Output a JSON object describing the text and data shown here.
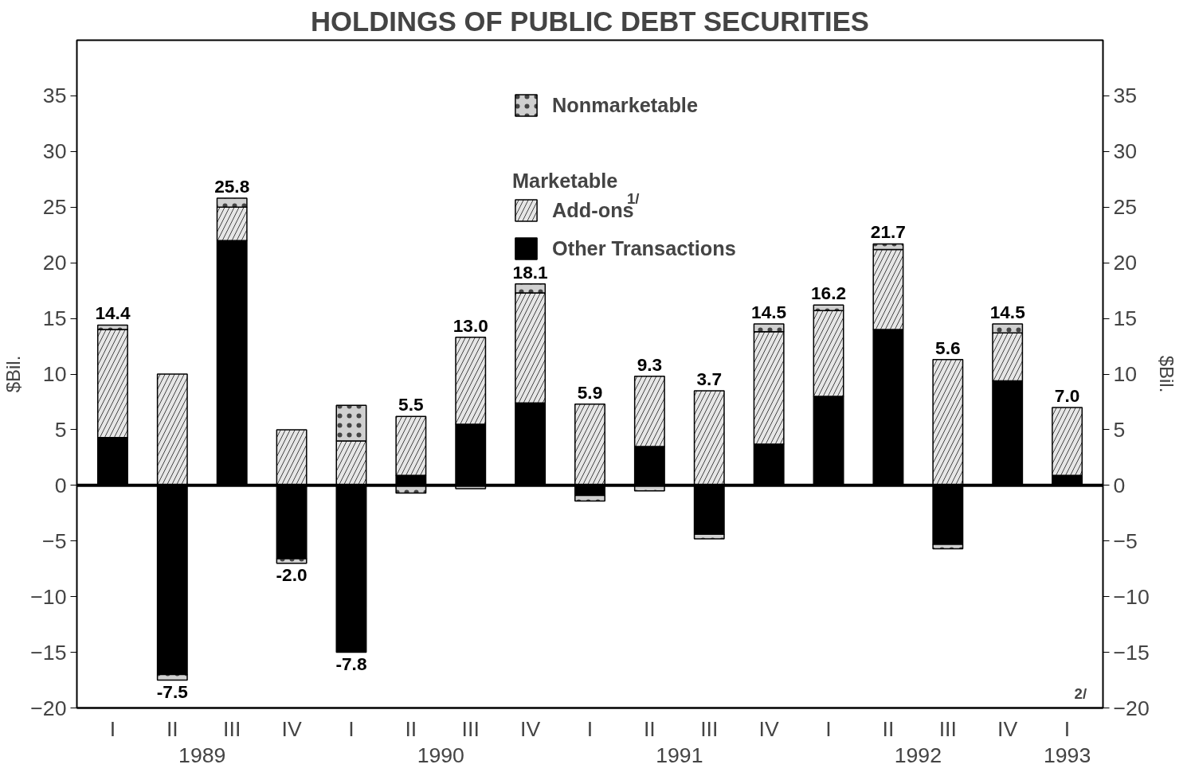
{
  "chart_data": {
    "type": "bar",
    "title": "HOLDINGS OF PUBLIC DEBT SECURITIES",
    "ylabel": "$Bil.",
    "y2label": "$Bil.",
    "categories": [
      "I",
      "II",
      "III",
      "IV",
      "I",
      "II",
      "III",
      "IV",
      "I",
      "II",
      "III",
      "IV",
      "I",
      "II",
      "III",
      "IV",
      "I"
    ],
    "stacked": true,
    "series": [
      {
        "name": "Other Transactions",
        "color": "#000000",
        "values": [
          4.3,
          -17.0,
          22.0,
          -6.6,
          -15.0,
          0.9,
          5.5,
          7.4,
          -0.9,
          3.5,
          -4.4,
          3.7,
          8.0,
          14.0,
          -5.3,
          9.4,
          0.9
        ]
      },
      {
        "name": "Add-ons",
        "color": "#e6e6e6",
        "values": [
          9.7,
          10.0,
          3.0,
          5.0,
          4.0,
          5.3,
          7.8,
          9.9,
          7.3,
          6.3,
          8.5,
          10.1,
          7.7,
          7.2,
          11.3,
          4.3,
          6.1
        ]
      },
      {
        "name": "Nonmarketable",
        "color": "#d0d0d0",
        "values": [
          0.4,
          -0.5,
          0.8,
          -0.4,
          3.2,
          -0.7,
          -0.3,
          0.8,
          -0.5,
          -0.5,
          -0.4,
          0.7,
          0.5,
          0.5,
          -0.4,
          0.8,
          null
        ]
      }
    ],
    "totals": [
      "14.4",
      "-7.5",
      "25.8",
      "-2.0",
      "-7.8",
      "5.5",
      "13.0",
      "18.1",
      "5.9",
      "9.3",
      "3.7",
      "14.5",
      "16.2",
      "21.7",
      "5.6",
      "14.5",
      "7.0"
    ],
    "ylim": [
      -20,
      40
    ],
    "yticks": [
      -20,
      -15,
      -10,
      -5,
      0,
      5,
      10,
      15,
      20,
      25,
      30,
      35
    ],
    "y2lim": [
      -20,
      40
    ],
    "y2ticks": [
      -20,
      -15,
      -10,
      -5,
      0,
      5,
      10,
      15,
      20,
      25,
      30,
      35
    ],
    "legend": "top",
    "annotations": [
      "1989",
      "1990",
      "1991",
      "1992",
      "1993",
      "Marketable",
      "1/",
      "2/"
    ]
  }
}
